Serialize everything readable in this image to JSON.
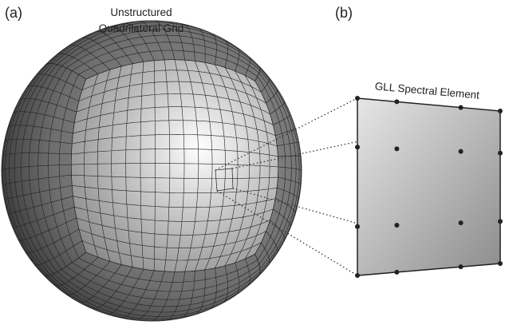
{
  "panels": [
    {
      "label": "(a)",
      "title": [
        "Unstructured",
        "Quadrilateral Grid"
      ]
    },
    {
      "label": "(b)",
      "title": "GLL Spectral Element"
    }
  ]
}
